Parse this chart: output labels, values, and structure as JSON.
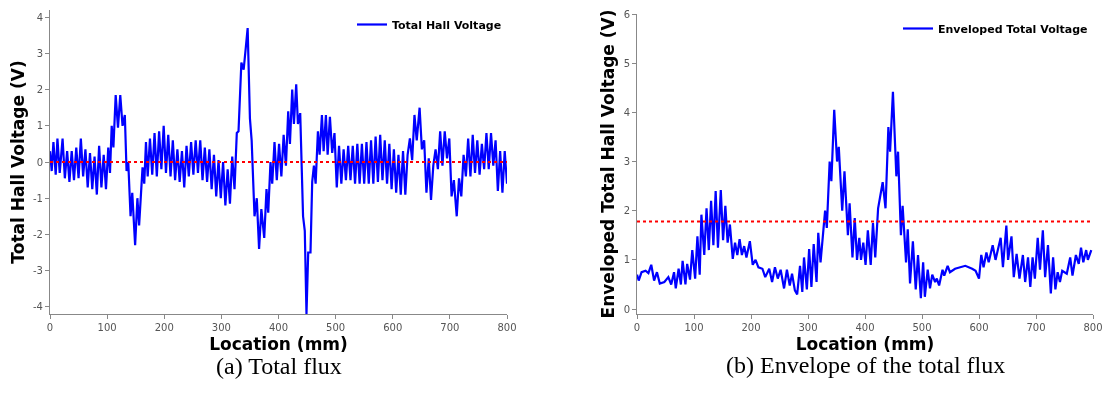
{
  "chart_data": [
    {
      "type": "line",
      "xlabel": "Location (mm)",
      "ylabel": "Total Hall Voltage (V)",
      "legend": "top right",
      "grid": false,
      "line_style": "solid",
      "marker": "none",
      "xlim": [
        0,
        800
      ],
      "xticks": [
        0,
        100,
        200,
        300,
        400,
        500,
        600,
        700,
        800
      ],
      "ylim": [
        -4.2,
        4.2
      ],
      "yticks": [
        -4,
        -3,
        -2,
        -1,
        0,
        1,
        2,
        3,
        4
      ],
      "ref_lines": [
        {
          "axis": "y",
          "value": 0,
          "color": "#ff0000",
          "line_style": "dotted"
        }
      ],
      "annotations": [
        "(a) Total flux"
      ],
      "series": [
        {
          "name": "Total Hall Voltage",
          "color": "#0000ff",
          "x": [
            0,
            3,
            6,
            10,
            13,
            17,
            22,
            26,
            30,
            34,
            38,
            42,
            46,
            50,
            54,
            58,
            62,
            66,
            70,
            74,
            78,
            82,
            86,
            90,
            94,
            98,
            102,
            105,
            108,
            111,
            115,
            119,
            123,
            127,
            131,
            134,
            137,
            141,
            144,
            149,
            153,
            156,
            162,
            165,
            168,
            171,
            175,
            179,
            183,
            187,
            191,
            195,
            199,
            203,
            207,
            211,
            215,
            219,
            223,
            227,
            231,
            235,
            239,
            243,
            247,
            251,
            255,
            259,
            263,
            267,
            271,
            275,
            279,
            283,
            287,
            291,
            295,
            299,
            303,
            307,
            311,
            315,
            319,
            323,
            327,
            330,
            335,
            339,
            343,
            346,
            350,
            353,
            358,
            362,
            366,
            370,
            375,
            379,
            382,
            386,
            389,
            393,
            397,
            401,
            405,
            409,
            413,
            417,
            420,
            424,
            427,
            431,
            434,
            438,
            443,
            446,
            449,
            452,
            456,
            459,
            462,
            465,
            469,
            472,
            476,
            479,
            483,
            486,
            490,
            494,
            498,
            502,
            506,
            510,
            514,
            518,
            522,
            526,
            530,
            534,
            538,
            542,
            546,
            550,
            554,
            558,
            562,
            566,
            570,
            574,
            578,
            582,
            586,
            590,
            594,
            598,
            602,
            606,
            610,
            614,
            618,
            622,
            626,
            630,
            634,
            638,
            642,
            647,
            651,
            655,
            659,
            663,
            667,
            671,
            675,
            679,
            683,
            687,
            691,
            695,
            699,
            703,
            707,
            712,
            716,
            720,
            724,
            728,
            732,
            736,
            740,
            744,
            748,
            752,
            756,
            760,
            764,
            768,
            772,
            776,
            780,
            784,
            788,
            792,
            796,
            800
          ],
          "values": [
            0.3,
            -0.25,
            0.55,
            -0.35,
            0.65,
            -0.3,
            0.65,
            -0.45,
            0.3,
            -0.55,
            0.3,
            -0.5,
            0.4,
            -0.45,
            0.65,
            -0.4,
            0.35,
            -0.7,
            0.25,
            -0.75,
            0.15,
            -0.9,
            0.45,
            -0.7,
            0.2,
            -0.75,
            0.4,
            -0.3,
            1.0,
            0.4,
            1.85,
            0.95,
            1.85,
            1.0,
            1.3,
            -0.25,
            0.0,
            -1.5,
            -0.85,
            -2.3,
            -1.0,
            -1.75,
            -0.15,
            -0.6,
            0.55,
            -0.4,
            0.65,
            -0.35,
            0.8,
            -0.4,
            0.85,
            -0.2,
            1.0,
            -0.3,
            0.75,
            -0.4,
            0.6,
            -0.5,
            0.35,
            -0.55,
            0.3,
            -0.7,
            0.45,
            -0.4,
            0.55,
            -0.35,
            0.6,
            -0.3,
            0.6,
            -0.5,
            0.4,
            -0.55,
            0.35,
            -0.75,
            0.2,
            -0.95,
            0.05,
            -1.0,
            0.0,
            -1.2,
            -0.2,
            -1.15,
            0.15,
            -0.75,
            0.8,
            0.85,
            2.75,
            2.55,
            3.2,
            3.7,
            1.2,
            0.6,
            -1.5,
            -1.0,
            -2.4,
            -1.3,
            -2.1,
            -0.75,
            -1.4,
            0.0,
            -0.6,
            0.55,
            -0.5,
            0.5,
            -0.4,
            0.75,
            -0.1,
            1.4,
            0.5,
            2.0,
            1.05,
            2.15,
            1.05,
            1.35,
            -1.5,
            -1.9,
            -4.2,
            -2.5,
            -2.5,
            -0.55,
            -0.1,
            -0.6,
            0.85,
            0.2,
            1.3,
            0.3,
            1.3,
            0.2,
            1.25,
            0.25,
            0.8,
            -0.7,
            0.45,
            -0.6,
            0.35,
            -0.5,
            0.45,
            -0.5,
            0.45,
            -0.6,
            0.5,
            -0.6,
            0.5,
            -0.6,
            0.55,
            -0.6,
            0.6,
            -0.6,
            0.7,
            -0.55,
            0.75,
            -0.5,
            0.6,
            -0.6,
            0.5,
            -0.75,
            0.35,
            -0.85,
            0.2,
            -0.9,
            0.3,
            -0.9,
            0.2,
            0.65,
            0.05,
            1.3,
            0.6,
            1.5,
            0.35,
            0.6,
            -0.85,
            0.1,
            -1.05,
            -0.1,
            0.35,
            -0.2,
            0.85,
            -0.1,
            0.85,
            0.1,
            0.65,
            -0.95,
            -0.5,
            -1.5,
            -0.45,
            -0.95,
            0.2,
            -0.4,
            0.65,
            -0.4,
            0.75,
            -0.3,
            0.6,
            -0.35,
            0.5,
            -0.2,
            0.8,
            -0.2,
            0.8,
            -0.1,
            0.6,
            -0.8,
            0.3,
            -0.85,
            0.3,
            -0.6
          ]
        }
      ]
    },
    {
      "type": "line",
      "xlabel": "Location (mm)",
      "ylabel": "Enveloped Total Hall Voltage (V)",
      "legend": "top right",
      "grid": false,
      "line_style": "solid",
      "marker": "none",
      "xlim": [
        0,
        800
      ],
      "xticks": [
        0,
        100,
        200,
        300,
        400,
        500,
        600,
        700,
        800
      ],
      "ylim": [
        -0.1,
        6
      ],
      "yticks": [
        0,
        1,
        2,
        3,
        4,
        5,
        6
      ],
      "ref_lines": [
        {
          "axis": "y",
          "value": 1.78,
          "color": "#ff0000",
          "line_style": "dotted"
        }
      ],
      "annotations": [
        "(b) Envelope of the total flux"
      ],
      "series": [
        {
          "name": "Enveloped Total Voltage",
          "color": "#0000ff",
          "x": [
            0,
            3,
            8,
            15,
            20,
            25,
            30,
            35,
            40,
            48,
            55,
            60,
            65,
            68,
            73,
            77,
            80,
            85,
            88,
            93,
            97,
            102,
            106,
            110,
            113,
            118,
            122,
            126,
            130,
            134,
            138,
            142,
            147,
            151,
            155,
            159,
            163,
            168,
            172,
            176,
            180,
            184,
            188,
            192,
            198,
            203,
            208,
            213,
            220,
            225,
            232,
            237,
            242,
            247,
            252,
            258,
            263,
            268,
            272,
            277,
            281,
            286,
            290,
            293,
            298,
            302,
            306,
            310,
            315,
            318,
            322,
            330,
            333,
            338,
            341,
            346,
            351,
            354,
            360,
            364,
            370,
            373,
            378,
            382,
            386,
            390,
            393,
            397,
            401,
            405,
            410,
            414,
            418,
            423,
            431,
            436,
            441,
            444,
            449,
            455,
            458,
            463,
            466,
            472,
            475,
            479,
            484,
            489,
            493,
            498,
            502,
            505,
            510,
            514,
            518,
            523,
            526,
            530,
            536,
            539,
            545,
            549,
            558,
            576,
            588,
            594,
            600,
            604,
            608,
            613,
            617,
            624,
            629,
            638,
            642,
            648,
            651,
            657,
            661,
            666,
            671,
            677,
            681,
            686,
            690,
            694,
            698,
            703,
            707,
            712,
            716,
            721,
            726,
            730,
            734,
            738,
            742,
            746,
            754,
            760,
            764,
            770,
            775,
            779,
            783,
            788,
            791,
            797
          ],
          "values": [
            0.7,
            0.58,
            0.75,
            0.78,
            0.73,
            0.9,
            0.58,
            0.75,
            0.52,
            0.55,
            0.65,
            0.5,
            0.75,
            0.42,
            0.82,
            0.5,
            0.98,
            0.5,
            0.92,
            0.6,
            1.2,
            0.62,
            1.48,
            0.7,
            1.92,
            1.1,
            2.05,
            1.2,
            2.2,
            1.3,
            2.4,
            1.25,
            2.42,
            1.4,
            2.1,
            1.35,
            1.72,
            1.02,
            1.35,
            1.1,
            1.42,
            1.1,
            1.28,
            1.05,
            1.38,
            0.9,
            1.0,
            0.85,
            0.82,
            0.65,
            0.82,
            0.55,
            0.85,
            0.62,
            0.8,
            0.42,
            0.8,
            0.48,
            0.72,
            0.38,
            0.3,
            0.88,
            0.35,
            1.05,
            0.4,
            1.22,
            0.45,
            1.32,
            0.55,
            1.55,
            0.95,
            2.0,
            1.65,
            3.0,
            2.6,
            4.05,
            3.0,
            3.3,
            2.0,
            2.8,
            1.5,
            2.15,
            1.05,
            1.85,
            1.0,
            1.45,
            1.0,
            1.35,
            0.9,
            1.6,
            0.9,
            1.75,
            1.05,
            2.05,
            2.58,
            2.05,
            3.7,
            3.2,
            4.42,
            2.7,
            3.2,
            1.5,
            2.1,
            0.95,
            1.62,
            0.52,
            1.38,
            0.4,
            1.1,
            0.22,
            0.95,
            0.25,
            0.8,
            0.42,
            0.7,
            0.55,
            0.62,
            0.48,
            0.8,
            0.68,
            0.88,
            0.75,
            0.82,
            0.88,
            0.82,
            0.78,
            0.62,
            1.1,
            0.85,
            1.15,
            0.95,
            1.3,
            1.0,
            1.45,
            0.85,
            1.7,
            1.0,
            1.48,
            0.65,
            1.12,
            0.62,
            1.1,
            0.55,
            1.05,
            0.45,
            1.05,
            0.62,
            1.45,
            0.8,
            1.6,
            0.65,
            1.3,
            0.32,
            1.05,
            0.4,
            0.75,
            0.55,
            0.78,
            0.72,
            1.05,
            0.68,
            1.1,
            0.92,
            1.25,
            0.95,
            1.2,
            1.0,
            1.2
          ]
        }
      ]
    }
  ]
}
